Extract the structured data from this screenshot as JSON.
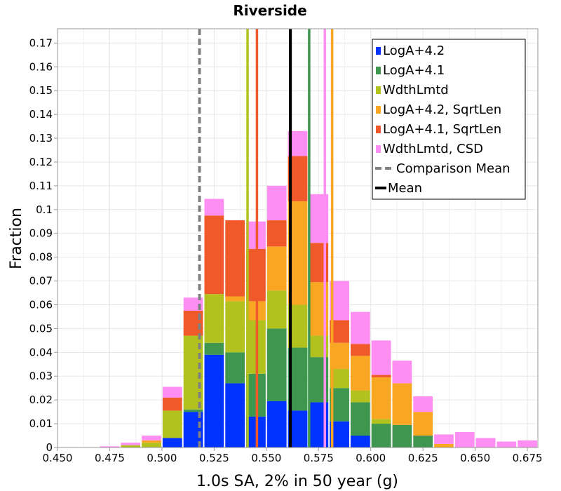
{
  "chart_data": {
    "type": "bar",
    "stacked": true,
    "title": "Riverside",
    "xlabel": "1.0s SA, 2% in 50 year (g)",
    "ylabel": "Fraction",
    "xlim": [
      0.45,
      0.68
    ],
    "ylim": [
      0,
      0.176
    ],
    "bin_width": 0.01,
    "grid": true,
    "legend_position": "top-right",
    "x_ticks": [
      "0.450",
      "0.475",
      "0.500",
      "0.525",
      "0.550",
      "0.575",
      "0.600",
      "0.625",
      "0.650",
      "0.675"
    ],
    "x_tick_values": [
      0.45,
      0.475,
      0.5,
      0.525,
      0.55,
      0.575,
      0.6,
      0.625,
      0.65,
      0.675
    ],
    "y_ticks": [
      "0",
      "0.01",
      "0.02",
      "0.03",
      "0.04",
      "0.05",
      "0.06",
      "0.07",
      "0.08",
      "0.09",
      "0.1",
      "0.11",
      "0.12",
      "0.13",
      "0.14",
      "0.15",
      "0.16",
      "0.17"
    ],
    "y_tick_values": [
      0,
      0.01,
      0.02,
      0.03,
      0.04,
      0.05,
      0.06,
      0.07,
      0.08,
      0.09,
      0.1,
      0.11,
      0.12,
      0.13,
      0.14,
      0.15,
      0.16,
      0.17
    ],
    "bin_centers": [
      0.475,
      0.485,
      0.495,
      0.505,
      0.515,
      0.525,
      0.535,
      0.545,
      0.555,
      0.565,
      0.575,
      0.585,
      0.595,
      0.605,
      0.615,
      0.625,
      0.635,
      0.645,
      0.655,
      0.665,
      0.675
    ],
    "series": [
      {
        "name": "LogA+4.2",
        "color": "#0033ff",
        "values": [
          0,
          0,
          0,
          0.004,
          0.015,
          0.039,
          0.027,
          0.013,
          0.0195,
          0.0155,
          0.019,
          0.011,
          0.005,
          0,
          0,
          0,
          0,
          0,
          0,
          0,
          0
        ]
      },
      {
        "name": "LogA+4.1",
        "color": "#3f974f",
        "values": [
          0,
          0,
          0,
          0,
          0.001,
          0.005,
          0.013,
          0.018,
          0.0305,
          0.0265,
          0.019,
          0.014,
          0.014,
          0.01,
          0.0095,
          0.005,
          0,
          0,
          0,
          0,
          0
        ]
      },
      {
        "name": "WdthLmtd",
        "color": "#b3c11f",
        "values": [
          0,
          0.001,
          0.002,
          0.0115,
          0.031,
          0.0205,
          0.0215,
          0.0225,
          0.016,
          0.018,
          0.009,
          0.008,
          0.005,
          0.002,
          0,
          0,
          0,
          0,
          0,
          0,
          0
        ]
      },
      {
        "name": "LogA+4.2, SqrtLen",
        "color": "#f9a623",
        "values": [
          0,
          0,
          0.001,
          0,
          0,
          0,
          0.002,
          0.008,
          0.0185,
          0.0435,
          0.0225,
          0.011,
          0.0145,
          0.0175,
          0.0175,
          0.01,
          0.0015,
          0,
          0,
          0,
          0
        ]
      },
      {
        "name": "LogA+4.1, SqrtLen",
        "color": "#f05a2a",
        "values": [
          0,
          0,
          0,
          0.0055,
          0.0105,
          0.033,
          0.032,
          0.022,
          0.011,
          0.019,
          0.0165,
          0.0095,
          0.005,
          0.001,
          0,
          0,
          0,
          0,
          0,
          0,
          0
        ]
      },
      {
        "name": "WdthLmtd, CSD",
        "color": "#ff8ef3",
        "values": [
          0.0005,
          0.001,
          0.002,
          0.0045,
          0.0055,
          0.007,
          0.0,
          0.0115,
          0.0145,
          0.0105,
          0.0205,
          0.0165,
          0.0135,
          0.0145,
          0.0095,
          0.0065,
          0.004,
          0.0065,
          0.004,
          0.0025,
          0.003
        ]
      }
    ],
    "comparison_mean": {
      "name": "Comparison Mean",
      "value": 0.518,
      "color": "#808080"
    },
    "mean": {
      "name": "Mean",
      "value": 0.5615,
      "color": "#000000"
    },
    "series_means": [
      {
        "series": "WdthLmtd",
        "value": 0.541
      },
      {
        "series": "LogA+4.1, SqrtLen",
        "value": 0.5455
      },
      {
        "series": "LogA+4.1",
        "value": 0.5705
      },
      {
        "series": "WdthLmtd, CSD",
        "value": 0.578
      },
      {
        "series": "LogA+4.2, SqrtLen",
        "value": 0.5815
      }
    ]
  }
}
